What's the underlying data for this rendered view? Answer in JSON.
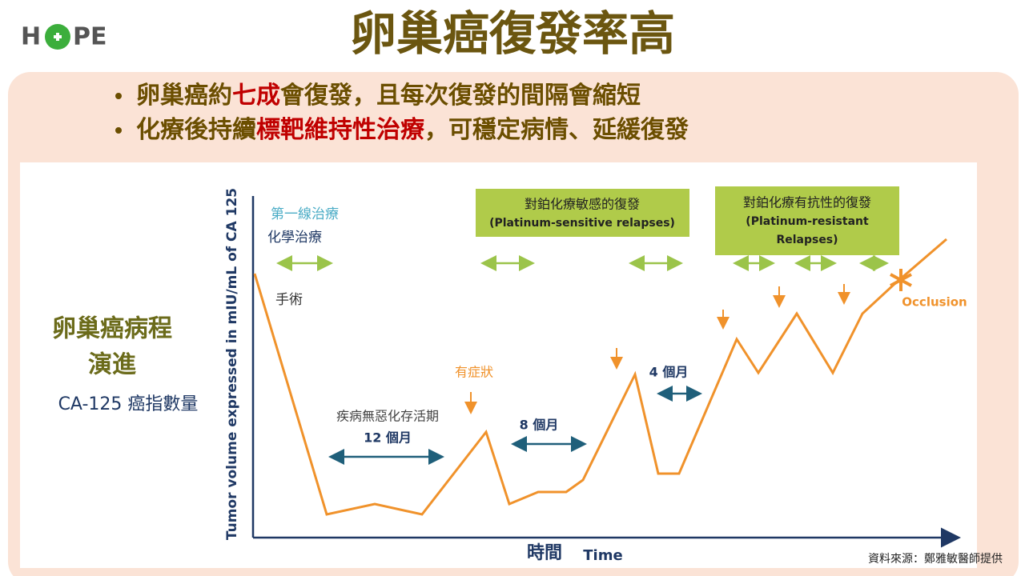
{
  "logo": {
    "left": "H",
    "right": "PE"
  },
  "title": "卵巢癌復發率高",
  "bullets": [
    [
      "卵巢癌約",
      "七成",
      "會復發，且每次復發的間隔會縮短"
    ],
    [
      "化療後持續",
      "標靶維持性治療",
      "，可穩定病情、延緩復發"
    ]
  ],
  "side_label": {
    "line1": "卵巢癌病程",
    "line2": "演進",
    "line3": "CA-125 癌指數量"
  },
  "diagram": {
    "y_axis_label": "Tumor volume expressed in mIU/mL of CA 125",
    "x_axis_label_zh": "時間",
    "x_axis_label_en": "Time",
    "first_line": "第一線治療",
    "chemo": "化學治療",
    "surgery": "手術",
    "pfs": "疾病無惡化存活期",
    "interval_1": "12 個月",
    "symptom": "有症狀",
    "interval_2": "8 個月",
    "interval_3": "4 個月",
    "occlusion": "Occlusion",
    "box_sensitive": [
      "對鉑化療敏感的復發",
      "(Platinum-sensitive relapses)"
    ],
    "box_resistant": [
      "對鉑化療有抗性的復發",
      "(Platinum-resistant",
      "Relapses)"
    ]
  },
  "source": "資料來源：鄭雅敏醫師提供"
}
